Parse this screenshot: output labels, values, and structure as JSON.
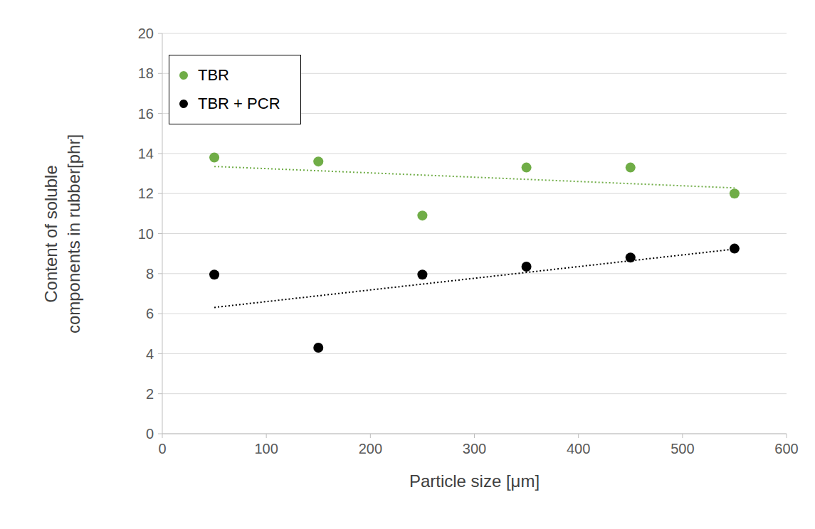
{
  "chart_data": {
    "type": "scatter",
    "x_label": "Particle size [μm]",
    "y_label": "Content of soluble components in rubber[phr]",
    "x": [
      50,
      150,
      250,
      350,
      450,
      550
    ],
    "series": [
      {
        "name": "TBR",
        "color": "#70ad47",
        "marker": "circle",
        "line_style": "dotted",
        "values": [
          13.8,
          13.6,
          10.9,
          13.3,
          13.3,
          12.0
        ]
      },
      {
        "name": "TBR + PCR",
        "color": "#000000",
        "marker": "circle",
        "line_style": "dotted",
        "values": [
          7.95,
          4.3,
          7.95,
          8.35,
          8.8,
          9.25
        ]
      }
    ],
    "xlim": [
      0,
      600
    ],
    "xticks": [
      0,
      100,
      200,
      300,
      400,
      500,
      600
    ],
    "ylim": [
      0,
      20
    ],
    "yticks": [
      0,
      2,
      4,
      6,
      8,
      10,
      12,
      14,
      16,
      18,
      20
    ],
    "grid": true,
    "legend": "upper left"
  }
}
